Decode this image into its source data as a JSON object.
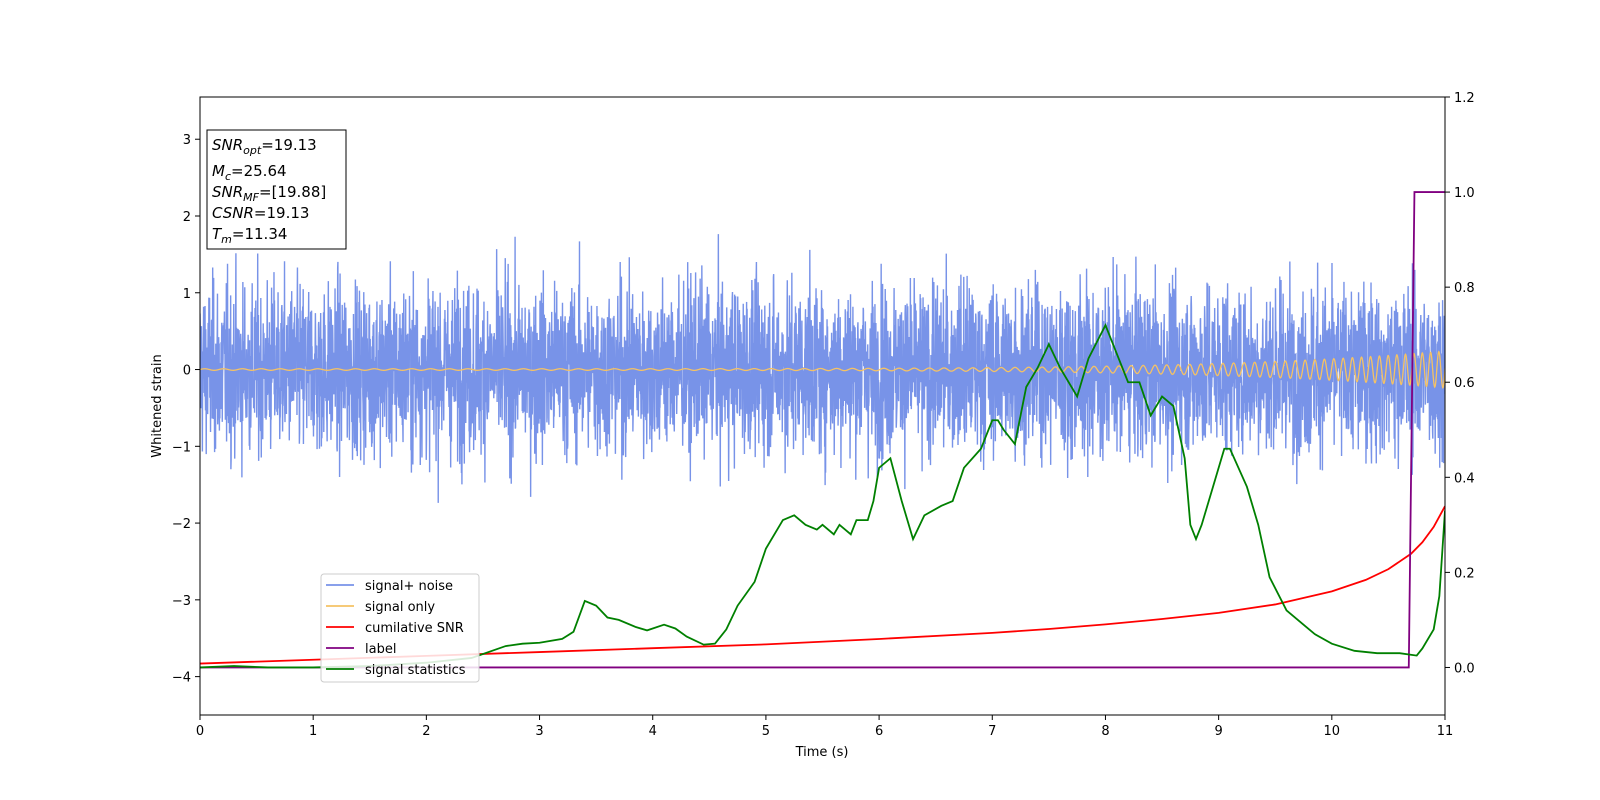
{
  "chart_data": {
    "type": "line",
    "xlabel": "Time (s)",
    "ylabel_left": "Whitened strain",
    "xlim": [
      0,
      11
    ],
    "ylim_left": [
      -4.5,
      3.55
    ],
    "ylim_right": [
      -0.1,
      1.2
    ],
    "x_ticks": [
      "0",
      "1",
      "2",
      "3",
      "4",
      "5",
      "6",
      "7",
      "8",
      "9",
      "10",
      "11"
    ],
    "y_ticks_left": [
      "−4",
      "−3",
      "−2",
      "−1",
      "0",
      "1",
      "2",
      "3"
    ],
    "y_ticks_right": [
      "0.0",
      "0.2",
      "0.4",
      "0.6",
      "0.8",
      "1.0",
      "1.2"
    ],
    "grid": false,
    "legend_position": "lower-left",
    "info_box": {
      "lines": [
        {
          "var": "SNR",
          "sub": "opt",
          "value": "=19.13"
        },
        {
          "var": "M",
          "sub": "c",
          "value": "=25.64"
        },
        {
          "var": "SNR",
          "sub": "MF",
          "value": "=[19.88]"
        },
        {
          "var": "CSNR",
          "sub": "",
          "value": "=19.13"
        },
        {
          "var": "T",
          "sub": "m",
          "value": "=11.34"
        }
      ]
    },
    "series": [
      {
        "name": "signal+ noise",
        "color": "#7893e8",
        "axis": "left",
        "kind": "noise",
        "noise_sigma": 0.55,
        "noise_max": 1.95,
        "noise_min": -1.9
      },
      {
        "name": "signal only",
        "color": "#f5c264",
        "axis": "left",
        "kind": "chirp",
        "amp_start": 0.01,
        "amp_end": 0.24
      },
      {
        "name": "cumilative SNR",
        "color": "#ff0000",
        "axis": "left",
        "x": [
          0,
          1,
          2,
          3,
          4,
          5,
          6,
          7,
          7.5,
          8,
          8.5,
          9,
          9.5,
          10,
          10.3,
          10.5,
          10.7,
          10.8,
          10.9,
          11
        ],
        "y": [
          -3.83,
          -3.78,
          -3.73,
          -3.68,
          -3.63,
          -3.58,
          -3.51,
          -3.43,
          -3.38,
          -3.32,
          -3.25,
          -3.17,
          -3.06,
          -2.89,
          -2.74,
          -2.6,
          -2.4,
          -2.25,
          -2.05,
          -1.78
        ]
      },
      {
        "name": "label",
        "color": "#800080",
        "axis": "right",
        "x": [
          0,
          10.68,
          10.73,
          11
        ],
        "y": [
          0,
          0,
          1,
          1
        ]
      },
      {
        "name": "signal statistics",
        "color": "#008000",
        "axis": "right",
        "x": [
          0,
          0.3,
          0.6,
          1.0,
          1.5,
          2.0,
          2.4,
          2.7,
          2.85,
          3.0,
          3.2,
          3.3,
          3.4,
          3.5,
          3.6,
          3.7,
          3.85,
          3.95,
          4.1,
          4.2,
          4.3,
          4.45,
          4.55,
          4.65,
          4.75,
          4.9,
          5.0,
          5.15,
          5.25,
          5.35,
          5.45,
          5.5,
          5.6,
          5.65,
          5.75,
          5.8,
          5.9,
          5.95,
          6.0,
          6.1,
          6.2,
          6.3,
          6.4,
          6.55,
          6.65,
          6.75,
          6.9,
          7.0,
          7.05,
          7.1,
          7.2,
          7.3,
          7.4,
          7.5,
          7.6,
          7.75,
          7.85,
          8.0,
          8.1,
          8.2,
          8.3,
          8.4,
          8.5,
          8.6,
          8.7,
          8.75,
          8.8,
          8.85,
          8.95,
          9.05,
          9.1,
          9.25,
          9.35,
          9.45,
          9.6,
          9.75,
          9.85,
          10.0,
          10.2,
          10.4,
          10.6,
          10.75,
          10.8,
          10.9,
          10.95,
          11.0
        ],
        "y": [
          0.0,
          0.003,
          0.0,
          0.0,
          0.003,
          0.01,
          0.02,
          0.045,
          0.05,
          0.052,
          0.06,
          0.075,
          0.14,
          0.13,
          0.105,
          0.1,
          0.085,
          0.078,
          0.09,
          0.082,
          0.065,
          0.048,
          0.05,
          0.08,
          0.13,
          0.18,
          0.25,
          0.31,
          0.32,
          0.3,
          0.29,
          0.3,
          0.28,
          0.3,
          0.28,
          0.31,
          0.31,
          0.35,
          0.42,
          0.44,
          0.35,
          0.27,
          0.32,
          0.34,
          0.35,
          0.42,
          0.46,
          0.52,
          0.52,
          0.5,
          0.47,
          0.59,
          0.63,
          0.68,
          0.63,
          0.57,
          0.65,
          0.72,
          0.66,
          0.6,
          0.6,
          0.53,
          0.57,
          0.55,
          0.44,
          0.3,
          0.27,
          0.3,
          0.38,
          0.46,
          0.46,
          0.38,
          0.3,
          0.19,
          0.12,
          0.09,
          0.07,
          0.05,
          0.035,
          0.03,
          0.03,
          0.025,
          0.04,
          0.08,
          0.15,
          0.33
        ]
      }
    ]
  }
}
